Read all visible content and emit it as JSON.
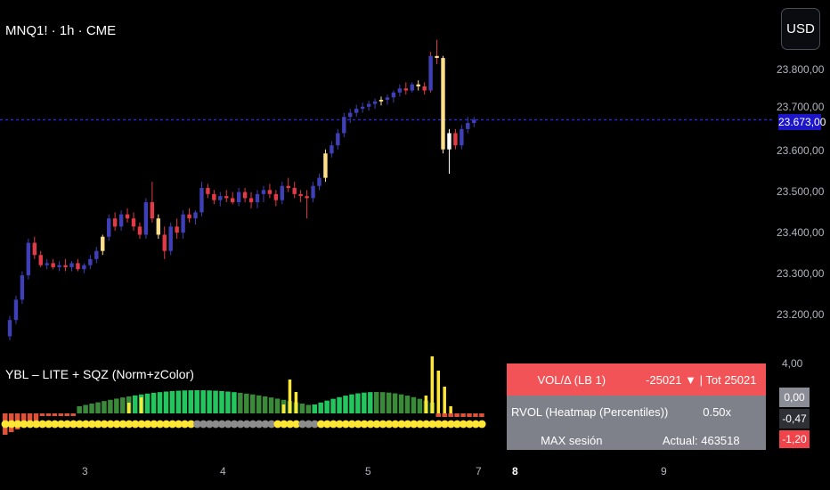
{
  "header": {
    "symbol": "MNQ1! · 1h · CME",
    "currency_button": "USD"
  },
  "price_axis": {
    "labels": [
      "23.800,00",
      "23.700,00",
      "23.600,00",
      "23.500,00",
      "23.400,00",
      "23.300,00",
      "23.200,00"
    ],
    "current": "23.673,00"
  },
  "indicator": {
    "title": "YBL – LITE + SQZ (Norm+zColor)",
    "axis_top": "4,00",
    "value_gray": "0,00",
    "value_dark": "-0,47",
    "value_red": "-1,20"
  },
  "time_axis": {
    "labels": [
      "3",
      "4",
      "5",
      "7",
      "8",
      "9"
    ]
  },
  "stats_table": {
    "row1": {
      "label": "VOL/Δ (LB 1)",
      "value": "-25021 ▼ | Tot 25021"
    },
    "row2": {
      "label": "RVOL (Heatmap (Percentiles))",
      "value": "0.50x"
    },
    "row3": {
      "label": "MAX sesión",
      "value": "Actual: 463518"
    }
  },
  "colors": {
    "bull_candle": "#3f3fb8",
    "bear_candle": "#e23a46",
    "highlight_candle": "#ffe08a",
    "price_line": "#2a22ff",
    "hist_green": "#22c55e",
    "hist_dark_green": "#3b8a3a",
    "dot_yellow": "#ffe534",
    "dot_gray": "#8c8c8c"
  },
  "chart_data": {
    "type": "candlestick",
    "price_range": [
      23130,
      23880
    ],
    "current_price": 23673,
    "candles": [
      [
        23140,
        23190,
        23130,
        23180
      ],
      [
        23180,
        23240,
        23170,
        23230
      ],
      [
        23230,
        23300,
        23220,
        23290
      ],
      [
        23290,
        23380,
        23280,
        23370
      ],
      [
        23370,
        23385,
        23330,
        23340
      ],
      [
        23340,
        23350,
        23310,
        23315
      ],
      [
        23315,
        23330,
        23305,
        23320
      ],
      [
        23320,
        23330,
        23305,
        23310
      ],
      [
        23310,
        23325,
        23300,
        23315
      ],
      [
        23315,
        23330,
        23300,
        23310
      ],
      [
        23310,
        23325,
        23300,
        23320
      ],
      [
        23320,
        23330,
        23300,
        23305
      ],
      [
        23305,
        23320,
        23295,
        23315
      ],
      [
        23315,
        23340,
        23305,
        23330
      ],
      [
        23330,
        23360,
        23320,
        23350
      ],
      [
        23350,
        23390,
        23340,
        23385
      ],
      [
        23385,
        23440,
        23375,
        23430
      ],
      [
        23430,
        23445,
        23400,
        23410
      ],
      [
        23410,
        23450,
        23400,
        23440
      ],
      [
        23440,
        23455,
        23420,
        23430
      ],
      [
        23430,
        23445,
        23400,
        23410
      ],
      [
        23410,
        23420,
        23380,
        23390
      ],
      [
        23390,
        23480,
        23380,
        23470
      ],
      [
        23470,
        23520,
        23420,
        23430
      ],
      [
        23430,
        23440,
        23380,
        23390
      ],
      [
        23390,
        23410,
        23330,
        23350
      ],
      [
        23350,
        23420,
        23340,
        23410
      ],
      [
        23410,
        23430,
        23380,
        23395
      ],
      [
        23395,
        23450,
        23380,
        23440
      ],
      [
        23440,
        23455,
        23420,
        23430
      ],
      [
        23430,
        23450,
        23415,
        23445
      ],
      [
        23445,
        23520,
        23435,
        23505
      ],
      [
        23505,
        23515,
        23480,
        23490
      ],
      [
        23490,
        23500,
        23465,
        23475
      ],
      [
        23475,
        23495,
        23460,
        23485
      ],
      [
        23485,
        23500,
        23470,
        23480
      ],
      [
        23480,
        23495,
        23465,
        23470
      ],
      [
        23470,
        23505,
        23460,
        23495
      ],
      [
        23495,
        23505,
        23470,
        23480
      ],
      [
        23480,
        23495,
        23455,
        23470
      ],
      [
        23470,
        23500,
        23455,
        23490
      ],
      [
        23490,
        23510,
        23470,
        23500
      ],
      [
        23500,
        23515,
        23480,
        23490
      ],
      [
        23490,
        23500,
        23460,
        23475
      ],
      [
        23475,
        23520,
        23465,
        23510
      ],
      [
        23510,
        23530,
        23495,
        23505
      ],
      [
        23505,
        23520,
        23480,
        23490
      ],
      [
        23490,
        23500,
        23470,
        23485
      ],
      [
        23485,
        23500,
        23430,
        23480
      ],
      [
        23480,
        23520,
        23470,
        23510
      ],
      [
        23510,
        23540,
        23500,
        23530
      ],
      [
        23530,
        23600,
        23520,
        23590
      ],
      [
        23590,
        23620,
        23580,
        23610
      ],
      [
        23610,
        23650,
        23600,
        23640
      ],
      [
        23640,
        23690,
        23630,
        23680
      ],
      [
        23680,
        23700,
        23665,
        23690
      ],
      [
        23690,
        23710,
        23680,
        23700
      ],
      [
        23700,
        23715,
        23690,
        23705
      ],
      [
        23705,
        23720,
        23695,
        23712
      ],
      [
        23712,
        23725,
        23700,
        23718
      ],
      [
        23718,
        23730,
        23708,
        23722
      ],
      [
        23722,
        23735,
        23710,
        23728
      ],
      [
        23728,
        23745,
        23715,
        23740
      ],
      [
        23740,
        23760,
        23730,
        23750
      ],
      [
        23750,
        23765,
        23735,
        23745
      ],
      [
        23745,
        23765,
        23740,
        23760
      ],
      [
        23760,
        23770,
        23745,
        23755
      ],
      [
        23755,
        23765,
        23735,
        23745
      ],
      [
        23745,
        23840,
        23740,
        23830
      ],
      [
        23830,
        23870,
        23810,
        23825
      ],
      [
        23825,
        23830,
        23590,
        23600
      ],
      [
        23600,
        23650,
        23540,
        23640
      ],
      [
        23640,
        23650,
        23600,
        23610
      ],
      [
        23610,
        23660,
        23600,
        23650
      ],
      [
        23650,
        23680,
        23640,
        23665
      ],
      [
        23665,
        23680,
        23655,
        23673
      ]
    ]
  }
}
